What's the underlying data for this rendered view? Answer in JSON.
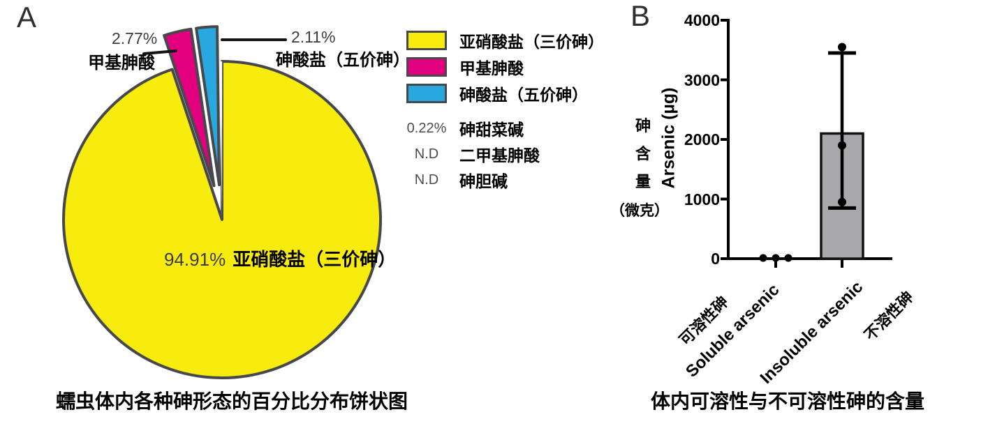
{
  "figure": {
    "panel_a": {
      "label": "A",
      "caption": "蠕虫体内各种砷形态的百分比分布饼状图",
      "center_label": {
        "pct": "94.91%",
        "name": "亚硝酸盐（三价砷）"
      },
      "callout_methyl": {
        "pct": "2.77%",
        "name": "甲基胂酸"
      },
      "callout_arsenate": {
        "pct": "2.11%",
        "name": "砷酸盐（五价砷）"
      },
      "legend_swatch_items": [
        {
          "label": "亚硝酸盐（三价砷）",
          "color": "#F8EC0E"
        },
        {
          "label": "甲基胂酸",
          "color": "#E2007E"
        },
        {
          "label": "砷酸盐（五价砷）",
          "color": "#29A8E0"
        }
      ],
      "legend_text_items": [
        {
          "prefix": "0.22%",
          "label": "砷甜菜碱"
        },
        {
          "prefix": "N.D",
          "label": "二甲基胂酸"
        },
        {
          "prefix": "N.D",
          "label": "砷胆碱"
        }
      ]
    },
    "panel_b": {
      "label": "B",
      "caption": "体内可溶性与不可溶性砷的含量",
      "y_axis_en": "Arsenic (µg)",
      "y_axis_zh_chars": [
        "砷",
        "含",
        "量"
      ],
      "y_axis_zh_unit": "（微克）",
      "x_labels": {
        "soluble_zh": "可溶性砷",
        "soluble_en": "Soluble arsenic",
        "insoluble_en": "Insoluble arsenic",
        "insoluble_zh": "不溶性砷"
      }
    }
  },
  "chart_data": [
    {
      "type": "pie",
      "title": "蠕虫体内各种砷形态的百分比分布饼状图",
      "direction": "clockwise",
      "start_angle_deg_from_top": 0,
      "slices": [
        {
          "label": "亚硝酸盐（三价砷）",
          "pct": 94.91,
          "color": "#F8EC0E",
          "exploded": false
        },
        {
          "label": "甲基胂酸",
          "pct": 2.77,
          "color": "#E2007E",
          "exploded": true
        },
        {
          "label": "砷酸盐（五价砷）",
          "pct": 2.11,
          "color": "#29A8E0",
          "exploded": true
        },
        {
          "label": "砷甜菜碱",
          "pct": 0.22,
          "color": "#FFFFFF",
          "exploded": false
        },
        {
          "label": "二甲基胂酸",
          "pct": null,
          "note": "N.D"
        },
        {
          "label": "砷胆碱",
          "pct": null,
          "note": "N.D"
        }
      ]
    },
    {
      "type": "bar",
      "title": "体内可溶性与不可溶性砷的含量",
      "ylabel": "Arsenic (µg)",
      "ylabel_zh": "砷含量（微克）",
      "ylim": [
        0,
        4000
      ],
      "yticks": [
        0,
        1000,
        2000,
        3000,
        4000
      ],
      "categories": [
        "Soluble arsenic 可溶性砷",
        "Insoluble arsenic 不溶性砷"
      ],
      "series": [
        {
          "name": "Arsenic (µg)",
          "values": [
            0,
            2100
          ]
        }
      ],
      "error_bars": [
        {
          "low": null,
          "high": null
        },
        {
          "low": 850,
          "high": 3450
        }
      ],
      "scatter_points": [
        [
          0,
          0,
          0
        ],
        [
          3550,
          1900,
          950
        ]
      ],
      "bar_fill": "#A9A9AB",
      "bar_edge": "#111111",
      "legend_position": "none",
      "grid": false
    }
  ]
}
